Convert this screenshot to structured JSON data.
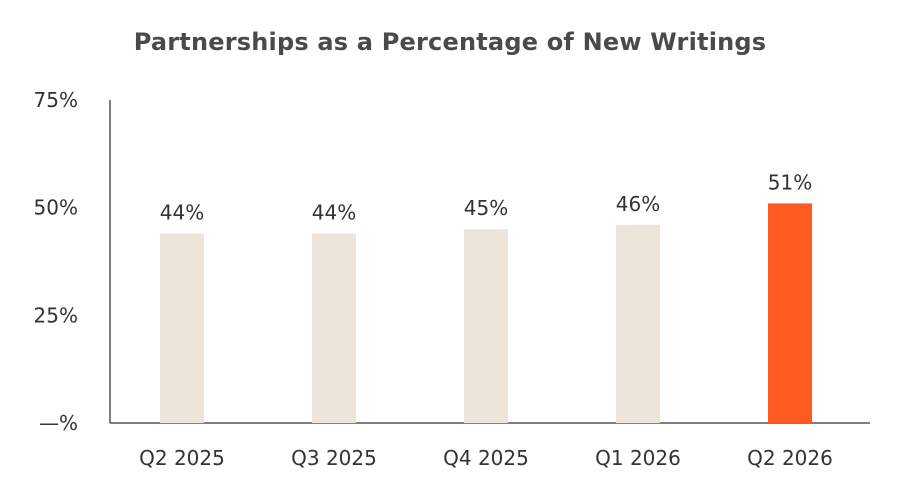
{
  "chart_data": {
    "type": "bar",
    "title": "Partnerships as a Percentage of New Writings",
    "xlabel": "",
    "ylabel": "",
    "categories": [
      "Q2 2025",
      "Q3 2025",
      "Q4 2025",
      "Q1 2026",
      "Q2 2026"
    ],
    "values": [
      44,
      44,
      45,
      46,
      51
    ],
    "value_labels": [
      "44%",
      "44%",
      "45%",
      "46%",
      "51%"
    ],
    "ylim": [
      0,
      75
    ],
    "yticks": [
      0,
      25,
      50,
      75
    ],
    "ytick_labels": [
      "—%",
      "25%",
      "50%",
      "75%"
    ],
    "grid": false,
    "legend": "none",
    "colors": {
      "default_bar": "#ede5d9",
      "highlight_bar": "#ff5a1f",
      "axis": "#555555"
    },
    "highlight_index": 4
  }
}
